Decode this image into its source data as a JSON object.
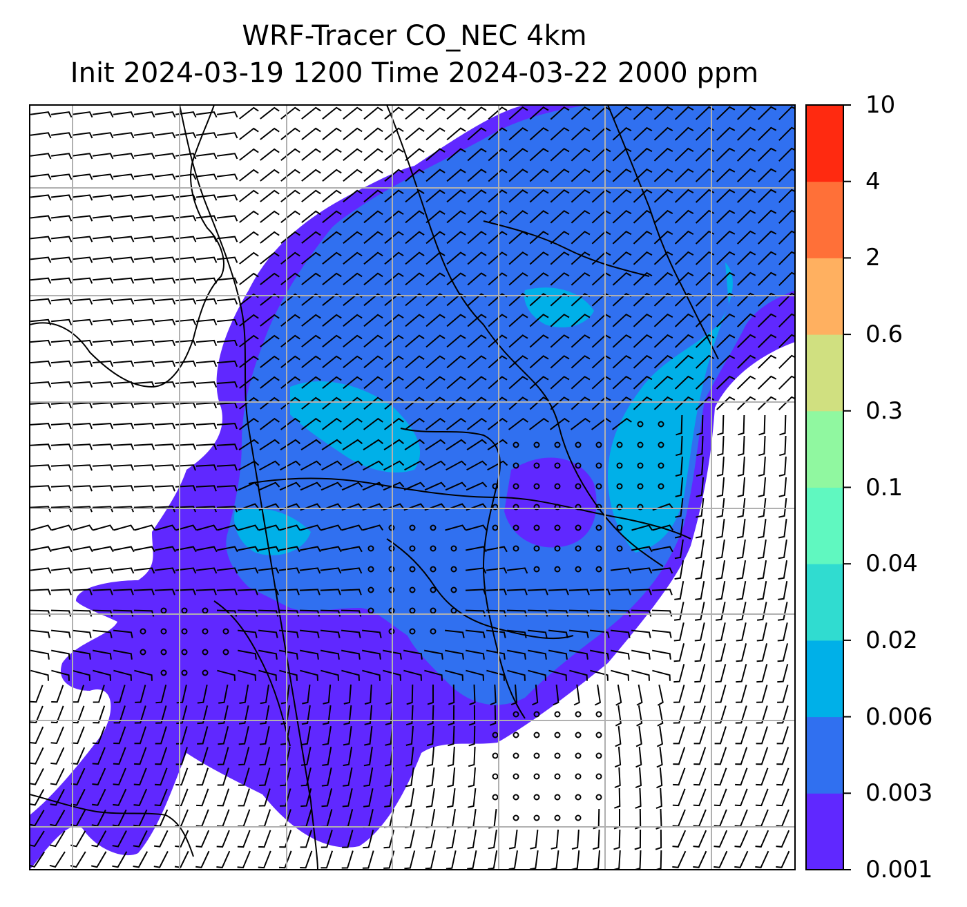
{
  "title": {
    "line1": "WRF-Tracer CO_NEC 4km",
    "line2": "Init 2024-03-19 1200 Time 2024-03-22 2000 ppm"
  },
  "colorbar": {
    "ticks": [
      "0.001",
      "0.003",
      "0.006",
      "0.02",
      "0.04",
      "0.1",
      "0.3",
      "0.6",
      "2",
      "4",
      "10"
    ],
    "colors": [
      "#6028ff",
      "#3070f0",
      "#00b0e8",
      "#30dcd0",
      "#60f8c0",
      "#90f8a0",
      "#d0e080",
      "#ffb060",
      "#ff7038",
      "#ff2a10"
    ]
  },
  "map": {
    "background": "#ffffff",
    "gridlines": true,
    "grid_color": "#b0b0b0",
    "layers": [
      "tracer-concentration-fill",
      "coastlines",
      "state-borders",
      "wind-barbs"
    ],
    "calm_wind_symbol": "circle"
  }
}
